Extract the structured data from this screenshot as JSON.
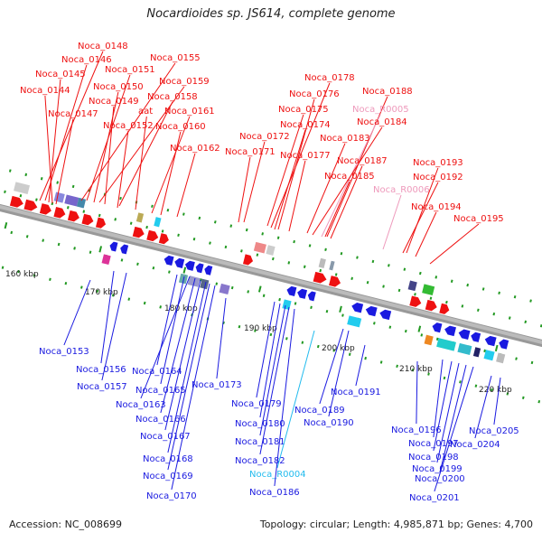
{
  "title": "Nocardioides sp. JS614, complete genome",
  "footer": {
    "accession": "Accession: NC_008699",
    "topology": "Topology: circular; Length: 4,985,871 bp; Genes: 4,700"
  },
  "colors": {
    "forward_gene": "#ee1111",
    "reverse_gene": "#1a1ae0",
    "ncrna_forward": "#ee99bb",
    "ncrna_reverse": "#22bbee",
    "backbone": "#777777",
    "tick": "#229922"
  },
  "ticks": [
    "160 kbp",
    "170 kbp",
    "180 kbp",
    "190 kbp",
    "200 kbp",
    "210 kbp",
    "220 kbp"
  ],
  "top_labels": [
    "Noca_0148",
    "Noca_0146",
    "Noca_0145",
    "Noca_0144",
    "Noca_0155",
    "Noca_0151",
    "Noca_0150",
    "Noca_0159",
    "Noca_0149",
    "Noca_0158",
    "Noca_0147",
    "aat",
    "Noca_0161",
    "Noca_0152",
    "Noca_0160",
    "Noca_0162",
    "Noca_0178",
    "Noca_0176",
    "Noca_0188",
    "Noca_0175",
    "Noca_R0005",
    "Noca_0174",
    "Noca_0184",
    "Noca_0172",
    "Noca_0183",
    "Noca_0171",
    "Noca_0177",
    "Noca_0187",
    "Noca_0193",
    "Noca_0185",
    "Noca_0192",
    "Noca_R0006",
    "Noca_0194",
    "Noca_0195"
  ],
  "bottom_labels": [
    "Noca_0153",
    "Noca_0156",
    "Noca_0157",
    "Noca_0164",
    "Noca_0165",
    "Noca_0163",
    "Noca_0166",
    "Noca_0173",
    "Noca_0167",
    "Noca_0168",
    "Noca_0169",
    "Noca_0170",
    "Noca_0179",
    "Noca_0180",
    "Noca_0181",
    "Noca_0182",
    "Noca_R0004",
    "Noca_0186",
    "Noca_0189",
    "Noca_0190",
    "Noca_0191",
    "Noca_0196",
    "Noca_0197",
    "Noca_0198",
    "Noca_0199",
    "Noca_0200",
    "Noca_0201",
    "Noca_0205",
    "Noca_0204"
  ]
}
